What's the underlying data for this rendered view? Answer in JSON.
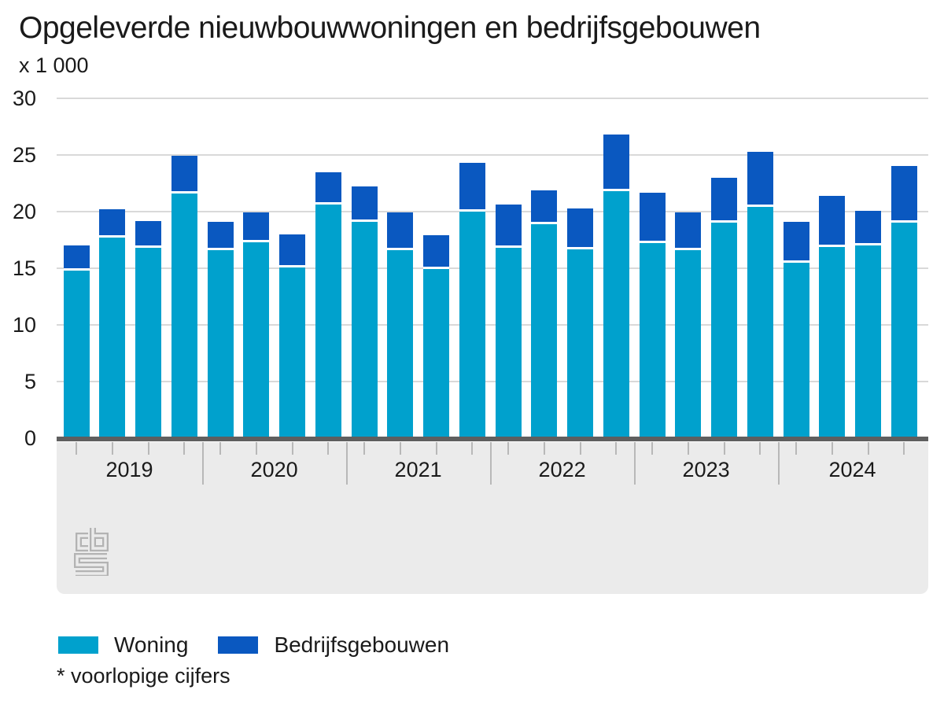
{
  "header": {
    "title": "Opgeleverde nieuwbouwwoningen en bedrijfsgebouwen",
    "unit_label": "x 1 000"
  },
  "legend": {
    "items": [
      {
        "label": "Woning",
        "color": "#00a1cd"
      },
      {
        "label": "Bedrijfsgebouwen",
        "color": "#0a58c0"
      }
    ]
  },
  "footnote": "* voorlopige cijfers",
  "logo_name": "cbs-logo",
  "chart_data": {
    "type": "bar",
    "stacked": true,
    "title": "Opgeleverde nieuwbouwwoningen en bedrijfsgebouwen",
    "unit": "x 1 000",
    "categories": [
      "2019",
      "2020",
      "2021",
      "2022",
      "2023",
      "2024"
    ],
    "bars_per_category": 4,
    "ylim": [
      0,
      30
    ],
    "yticks": [
      0,
      5,
      10,
      15,
      20,
      25,
      30
    ],
    "grid": true,
    "legend_position": "bottom",
    "series": [
      {
        "name": "Woning",
        "color": "#00a1cd",
        "values": [
          14.8,
          17.7,
          16.8,
          21.6,
          16.6,
          17.3,
          15.1,
          20.6,
          19.1,
          16.6,
          14.9,
          20.0,
          16.8,
          18.9,
          16.7,
          21.8,
          17.2,
          16.6,
          19.0,
          20.4,
          15.5,
          16.9,
          17.0,
          19.0
        ]
      },
      {
        "name": "Bedrijfsgebouwen",
        "color": "#0a58c0",
        "values": [
          2.2,
          2.5,
          2.4,
          3.3,
          2.5,
          2.6,
          2.9,
          2.9,
          3.1,
          3.3,
          3.0,
          4.3,
          3.8,
          3.0,
          3.6,
          5.0,
          4.5,
          3.3,
          4.0,
          4.9,
          3.6,
          4.5,
          3.1,
          5.0
        ]
      }
    ]
  }
}
